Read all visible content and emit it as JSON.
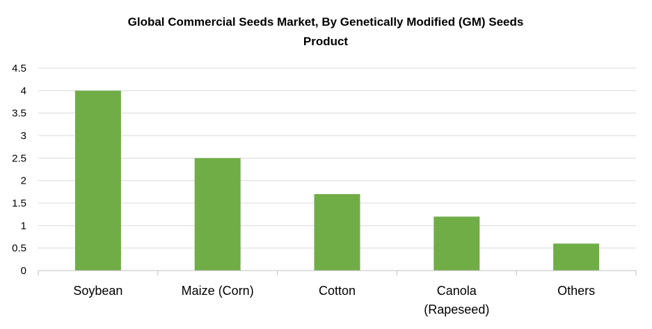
{
  "chart_data": {
    "type": "bar",
    "title_lines": [
      "Global Commercial Seeds Market, By Genetically Modified (GM) Seeds",
      "Product"
    ],
    "categories": [
      [
        "Soybean"
      ],
      [
        "Maize (Corn)"
      ],
      [
        "Cotton"
      ],
      [
        "Canola",
        "(Rapeseed)"
      ],
      [
        "Others"
      ]
    ],
    "values": [
      4.0,
      2.5,
      1.7,
      1.2,
      0.6
    ],
    "ylim": [
      0,
      4.5
    ],
    "yticks": [
      0,
      0.5,
      1,
      1.5,
      2,
      2.5,
      3,
      3.5,
      4,
      4.5
    ],
    "ytick_labels": [
      "0",
      "0.5",
      "1",
      "1.5",
      "2",
      "2.5",
      "3",
      "3.5",
      "4",
      "4.5"
    ],
    "xlabel": "",
    "ylabel": "",
    "grid": true,
    "legend": "none",
    "colors": {
      "bar": "#70ad47",
      "grid": "#d9d9d9",
      "axis": "#bfbfbf"
    }
  }
}
